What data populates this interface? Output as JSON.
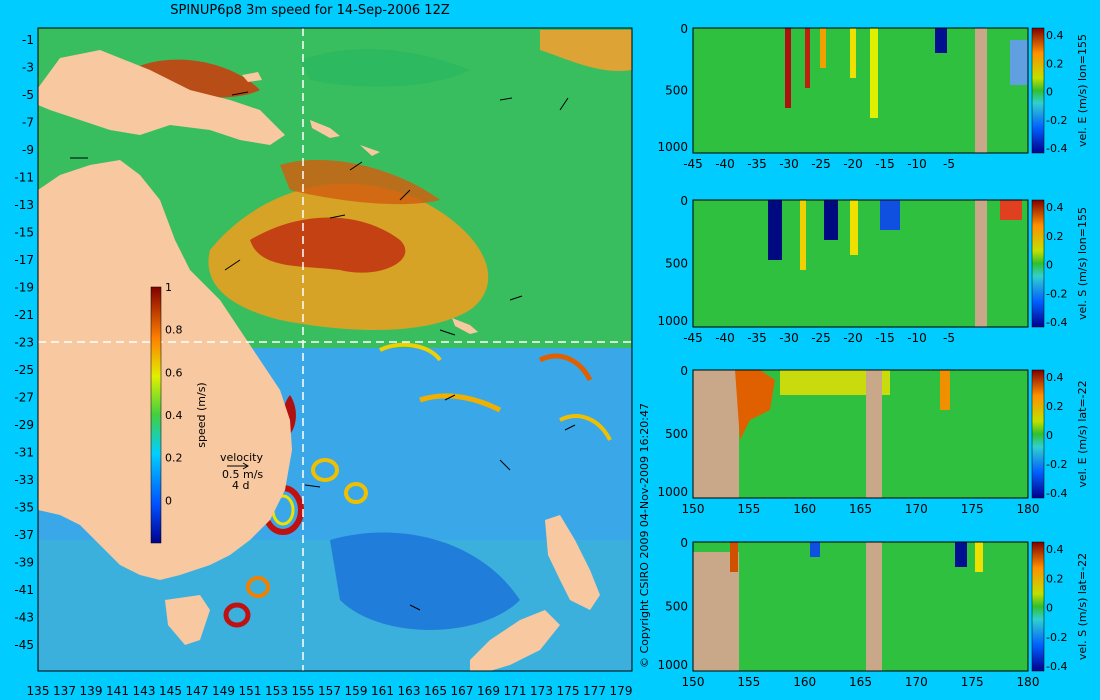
{
  "title": "SPINUP6p8 3m speed for 14-Sep-2006 12Z",
  "copyright": "© Copyright CSIRO 2009   04-Nov-2009 16:20:47",
  "map": {
    "lat_ticks": [
      "-1",
      "-3",
      "-5",
      "-7",
      "-9",
      "-11",
      "-13",
      "-15",
      "-17",
      "-19",
      "-21",
      "-23",
      "-25",
      "-27",
      "-29",
      "-31",
      "-33",
      "-35",
      "-37",
      "-39",
      "-41",
      "-43",
      "-45"
    ],
    "lon_ticks": [
      "135",
      "137",
      "139",
      "141",
      "143",
      "145",
      "147",
      "149",
      "151",
      "153",
      "155",
      "157",
      "159",
      "161",
      "163",
      "165",
      "167",
      "169",
      "171",
      "173",
      "175",
      "177",
      "179"
    ],
    "colorbar": {
      "label": "speed (m/s)",
      "ticks": [
        "1",
        "0.8",
        "0.6",
        "0.4",
        "0.2",
        "0"
      ],
      "range": [
        -0.2,
        1
      ]
    },
    "velocity_key": {
      "label": "velocity",
      "speed": "0.5 m/s",
      "duration": "4 d"
    }
  },
  "sections": [
    {
      "ylabel": "vel. E (m/s) lon=155",
      "x_ticks": [
        "-45",
        "-40",
        "-35",
        "-30",
        "-25",
        "-20",
        "-15",
        "-10",
        "-5"
      ],
      "y_ticks": [
        "0",
        "500",
        "1000"
      ],
      "cbar_ticks": [
        "0.4",
        "0.2",
        "0",
        "-0.2",
        "-0.4"
      ]
    },
    {
      "ylabel": "vel. S (m/s) lon=155",
      "x_ticks": [
        "-45",
        "-40",
        "-35",
        "-30",
        "-25",
        "-20",
        "-15",
        "-10",
        "-5"
      ],
      "y_ticks": [
        "0",
        "500",
        "1000"
      ],
      "cbar_ticks": [
        "0.4",
        "0.2",
        "0",
        "-0.2",
        "-0.4"
      ]
    },
    {
      "ylabel": "vel. E (m/s) lat=-22",
      "x_ticks": [
        "150",
        "155",
        "160",
        "165",
        "170",
        "175",
        "180"
      ],
      "y_ticks": [
        "0",
        "500",
        "1000"
      ],
      "cbar_ticks": [
        "0.4",
        "0.2",
        "0",
        "-0.2",
        "-0.4"
      ]
    },
    {
      "ylabel": "vel. S (m/s) lat=-22",
      "x_ticks": [
        "150",
        "155",
        "160",
        "165",
        "170",
        "175",
        "180"
      ],
      "y_ticks": [
        "0",
        "500",
        "1000"
      ],
      "cbar_ticks": [
        "0.4",
        "0.2",
        "0",
        "-0.2",
        "-0.4"
      ]
    }
  ]
}
